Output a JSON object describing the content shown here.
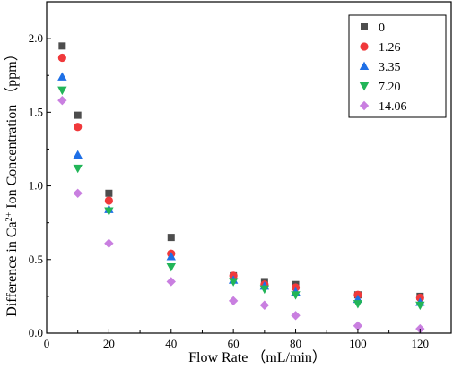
{
  "chart_data": {
    "type": "scatter",
    "xlabel": "Flow Rate （mL/min）",
    "ylabel_parts": {
      "before_super": "Difference in Ca",
      "superscript": "2+",
      "after_super": " Ion Concentration （ppm）"
    },
    "xlim": [
      0,
      130
    ],
    "ylim": [
      0,
      2.25
    ],
    "xticks": [
      0,
      20,
      40,
      60,
      80,
      100,
      120
    ],
    "yticks": [
      0.0,
      0.5,
      1.0,
      1.5,
      2.0
    ],
    "xtick_labels": [
      "0",
      "20",
      "40",
      "60",
      "80",
      "100",
      "120"
    ],
    "ytick_labels": [
      "0.0",
      "0.5",
      "1.0",
      "1.5",
      "2.0"
    ],
    "grid": false,
    "legend_position": "top-right",
    "x": [
      5,
      10,
      20,
      40,
      60,
      70,
      80,
      100,
      120
    ],
    "series": [
      {
        "name": "0",
        "marker": "square",
        "color": "#4d4d4d",
        "values": [
          1.95,
          1.48,
          0.95,
          0.65,
          0.39,
          0.35,
          0.33,
          0.26,
          0.25
        ]
      },
      {
        "name": "1.26",
        "marker": "circle",
        "color": "#f0393b",
        "values": [
          1.87,
          1.4,
          0.9,
          0.54,
          0.39,
          0.33,
          0.31,
          0.26,
          0.24
        ]
      },
      {
        "name": "3.35",
        "marker": "triangle-up",
        "color": "#1e6fe6",
        "values": [
          1.74,
          1.21,
          0.84,
          0.52,
          0.36,
          0.32,
          0.28,
          0.23,
          0.21
        ]
      },
      {
        "name": "7.20",
        "marker": "triangle-down",
        "color": "#22b558",
        "values": [
          1.65,
          1.12,
          0.83,
          0.45,
          0.35,
          0.3,
          0.26,
          0.2,
          0.19
        ]
      },
      {
        "name": "14.06",
        "marker": "diamond",
        "color": "#c97fe0",
        "values": [
          1.58,
          0.95,
          0.61,
          0.35,
          0.22,
          0.19,
          0.12,
          0.05,
          0.03
        ]
      }
    ]
  }
}
